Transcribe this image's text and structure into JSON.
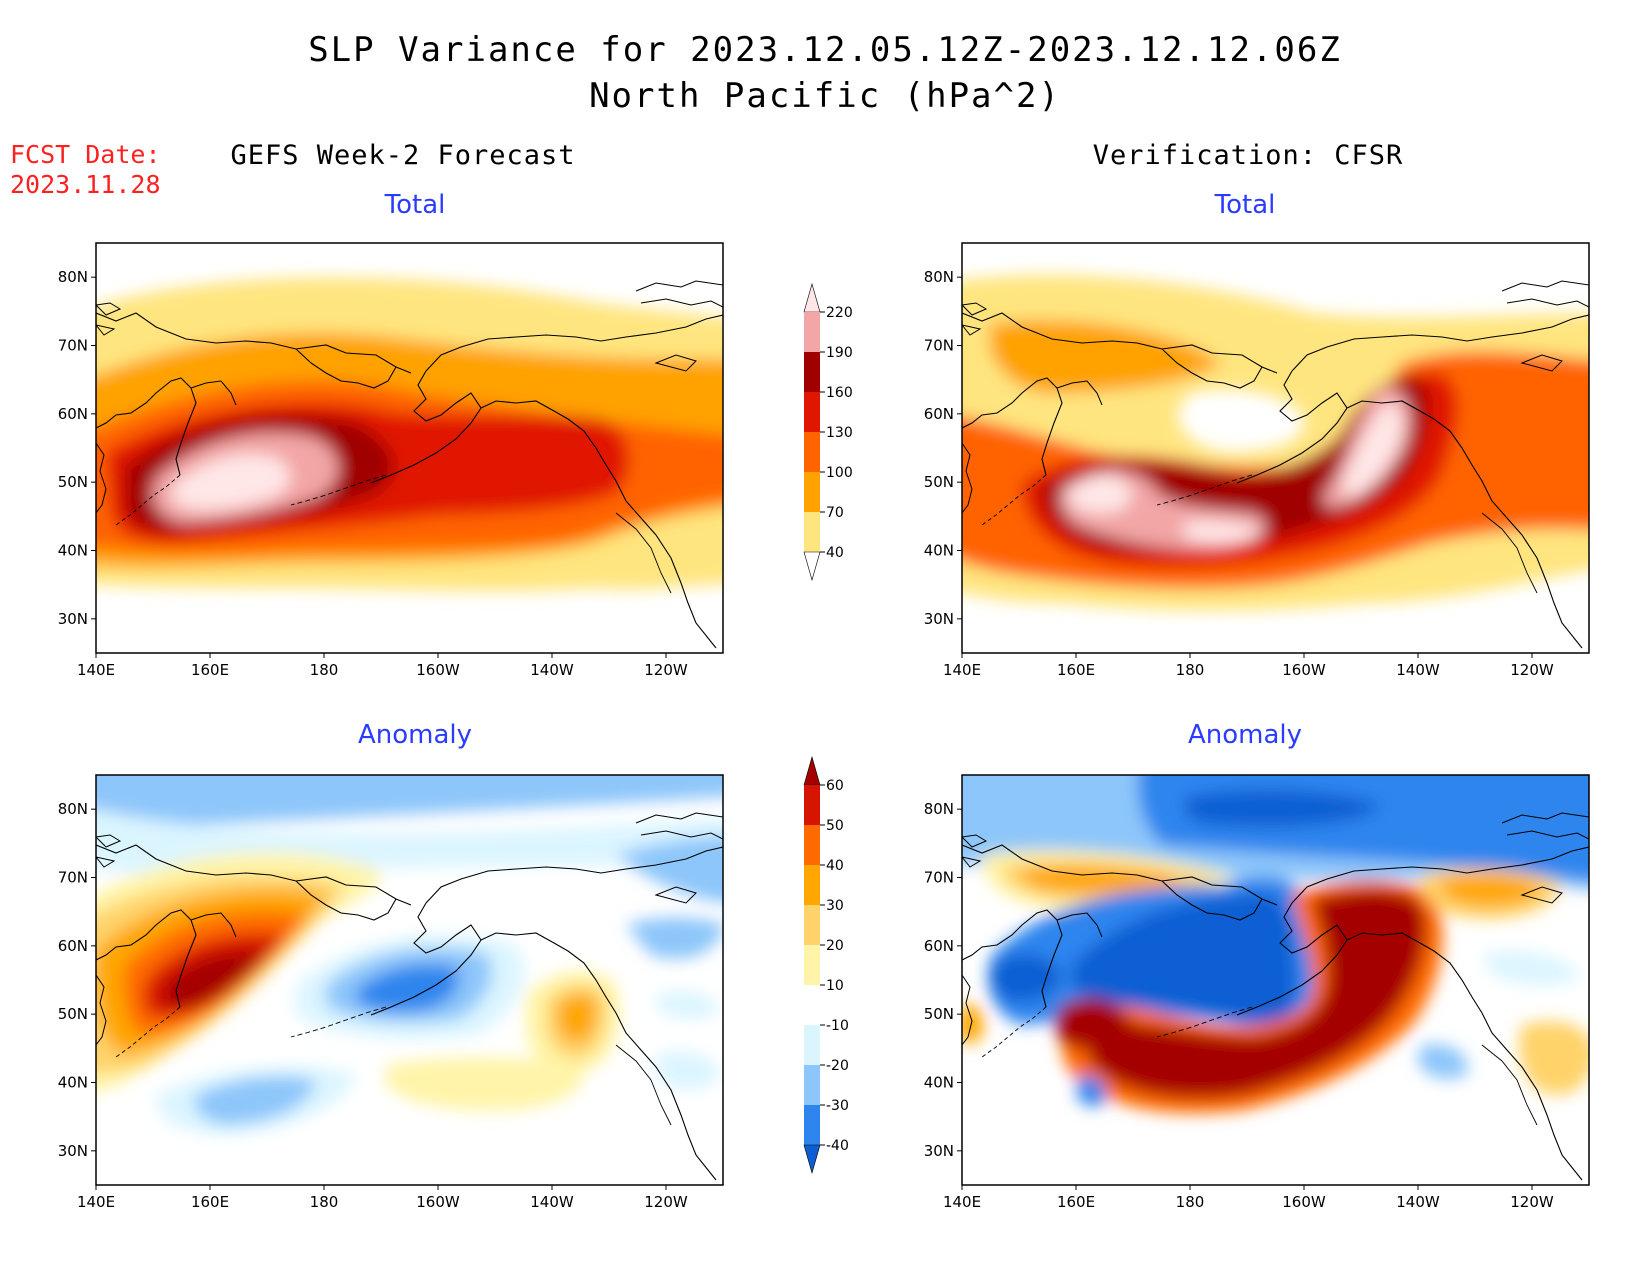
{
  "header": {
    "title_line1": "SLP Variance for 2023.12.05.12Z-2023.12.12.06Z",
    "title_line2": "North Pacific (hPa^2)",
    "fcst_label": "FCST Date:",
    "fcst_date": "2023.11.28"
  },
  "columns": {
    "left": "GEFS Week-2 Forecast",
    "right": "Verification: CFSR"
  },
  "panels": {
    "total_label": "Total",
    "anomaly_label": "Anomaly"
  },
  "axes": {
    "lat_labels": [
      "80N",
      "70N",
      "60N",
      "50N",
      "40N",
      "30N"
    ],
    "lon_labels": [
      "140E",
      "160E",
      "180",
      "160W",
      "140W",
      "120W"
    ],
    "lat_range": [
      25,
      85
    ],
    "lon_range": [
      140,
      250
    ]
  },
  "legend_total": {
    "levels": [
      "40",
      "70",
      "100",
      "130",
      "160",
      "190",
      "220"
    ],
    "colors": [
      "#ffffff",
      "#ffe57f",
      "#ffa200",
      "#ff6400",
      "#e01700",
      "#a00000",
      "#f3a6a6",
      "#ffe7e7"
    ]
  },
  "legend_anomaly": {
    "levels": [
      "-40",
      "-30",
      "-20",
      "-10",
      "10",
      "20",
      "30",
      "40",
      "50",
      "60"
    ],
    "colors": [
      "#0e5ed3",
      "#2f85ee",
      "#8dc6fa",
      "#dbf5ff",
      "#ffffff",
      "#fff4a8",
      "#ffd36a",
      "#ffa600",
      "#ff6a00",
      "#d61500",
      "#a50000"
    ]
  }
}
